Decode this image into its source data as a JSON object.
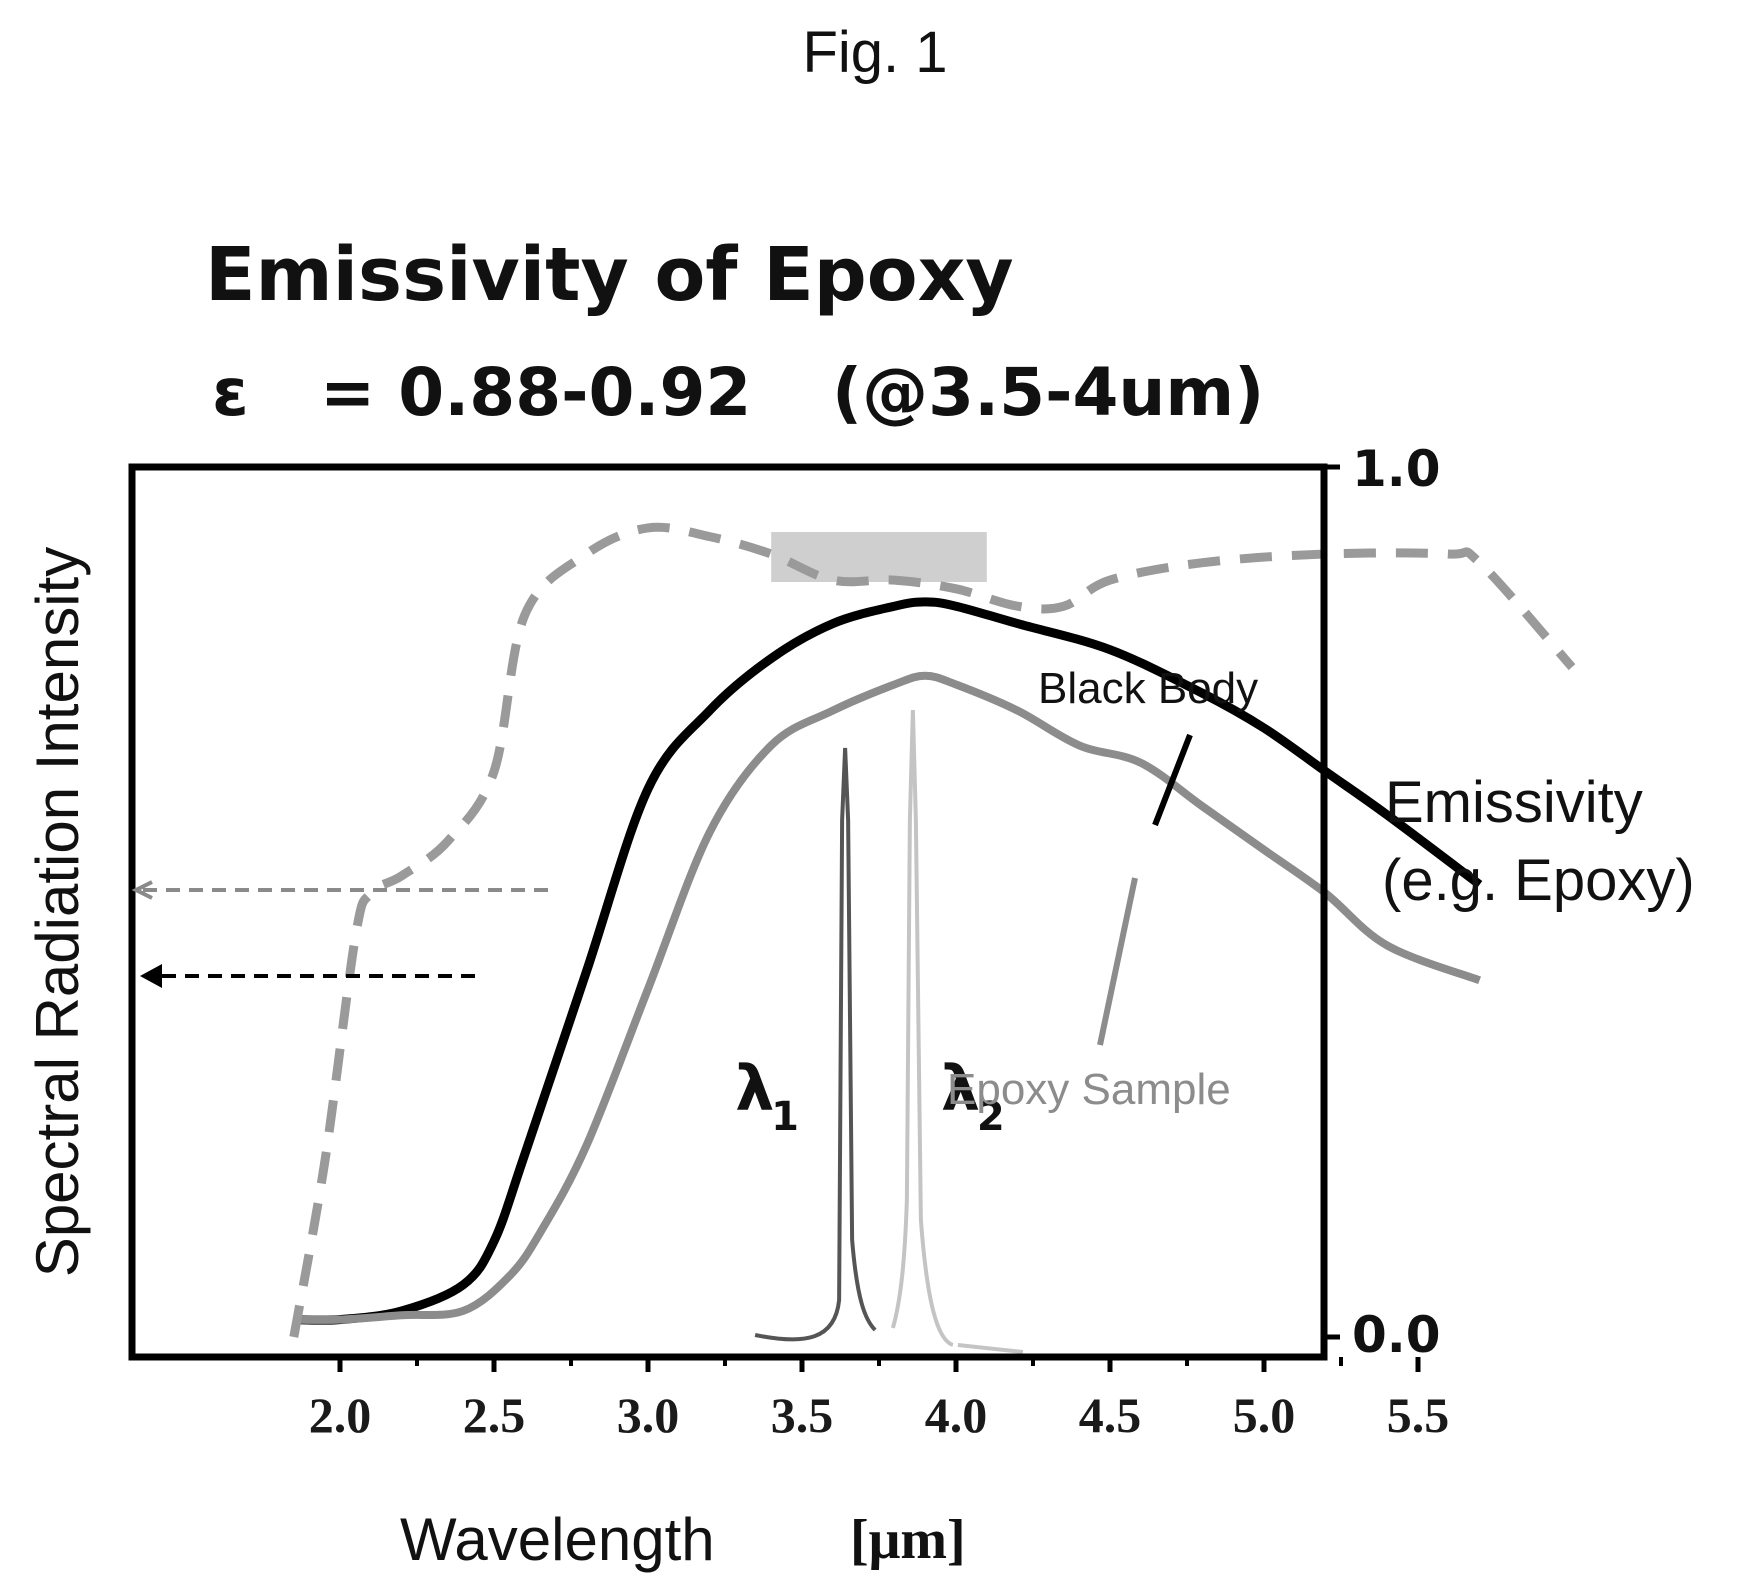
{
  "figure_label": "Fig. 1",
  "colors": {
    "black_body": "#000000",
    "epoxy_sample": "#8c8c8c",
    "emissivity": "#9a9a9a",
    "highlight": "#cfcfcf",
    "lambda1": "#555555",
    "lambda2": "#c4c4c4"
  },
  "chart_data": {
    "type": "line",
    "title": "Emissivity of Epoxy",
    "subtitle": {
      "symbol": "ε",
      "value": "= 0.88-0.92",
      "range": "(@3.5-4um)"
    },
    "xlabel": "Wavelength",
    "xunit": "[μm]",
    "ylabel": "Spectral Radiation Intensity",
    "xlim": [
      1.85,
      5.7
    ],
    "ylim_right": [
      0.0,
      1.0
    ],
    "x_ticks": [
      "2.0",
      "2.5",
      "3.0",
      "3.5",
      "4.0",
      "4.5",
      "5.0",
      "5.5"
    ],
    "y2_ticks": [
      "1.0",
      "0.0"
    ],
    "grid": false,
    "series": [
      {
        "name": "Black Body",
        "axis": "right",
        "x": [
          1.85,
          2.0,
          2.2,
          2.4,
          2.5,
          2.6,
          2.8,
          3.0,
          3.2,
          3.4,
          3.6,
          3.8,
          3.9,
          4.0,
          4.2,
          4.5,
          4.8,
          5.0,
          5.2,
          5.4,
          5.7
        ],
        "y": [
          0.02,
          0.02,
          0.03,
          0.06,
          0.11,
          0.21,
          0.42,
          0.63,
          0.72,
          0.78,
          0.82,
          0.84,
          0.845,
          0.84,
          0.82,
          0.79,
          0.74,
          0.7,
          0.65,
          0.6,
          0.52
        ]
      },
      {
        "name": "Epoxy Sample",
        "axis": "right",
        "x": [
          1.85,
          2.0,
          2.2,
          2.4,
          2.55,
          2.65,
          2.8,
          3.0,
          3.2,
          3.4,
          3.6,
          3.8,
          3.9,
          4.0,
          4.2,
          4.4,
          4.6,
          4.8,
          5.0,
          5.2,
          5.4,
          5.7
        ],
        "y": [
          0.02,
          0.02,
          0.025,
          0.03,
          0.07,
          0.12,
          0.22,
          0.4,
          0.58,
          0.68,
          0.72,
          0.75,
          0.76,
          0.75,
          0.72,
          0.68,
          0.66,
          0.61,
          0.56,
          0.51,
          0.45,
          0.41
        ]
      },
      {
        "name": "Emissivity",
        "axis": "right",
        "style": "dashed",
        "x": [
          1.85,
          1.95,
          2.05,
          2.1,
          2.2,
          2.35,
          2.5,
          2.6,
          2.8,
          3.0,
          3.2,
          3.4,
          3.6,
          3.8,
          4.0,
          4.2,
          4.35,
          4.5,
          4.8,
          5.2,
          5.6,
          5.7,
          6.0
        ],
        "y": [
          0.0,
          0.2,
          0.46,
          0.51,
          0.53,
          0.57,
          0.65,
          0.83,
          0.9,
          0.93,
          0.92,
          0.9,
          0.87,
          0.87,
          0.86,
          0.84,
          0.84,
          0.87,
          0.89,
          0.9,
          0.9,
          0.89,
          0.77
        ]
      }
    ],
    "peaks": [
      {
        "label": "λ",
        "subscript": "1",
        "x": 3.64
      },
      {
        "label": "λ",
        "subscript": "2",
        "x": 3.86
      }
    ],
    "highlight_band": {
      "x": [
        3.4,
        4.1
      ]
    },
    "annotations": [
      {
        "text": "Black Body"
      },
      {
        "text": "Epoxy Sample"
      },
      {
        "text_line1": "Emissivity",
        "text_line2": "(e.g. Epoxy)"
      }
    ]
  }
}
